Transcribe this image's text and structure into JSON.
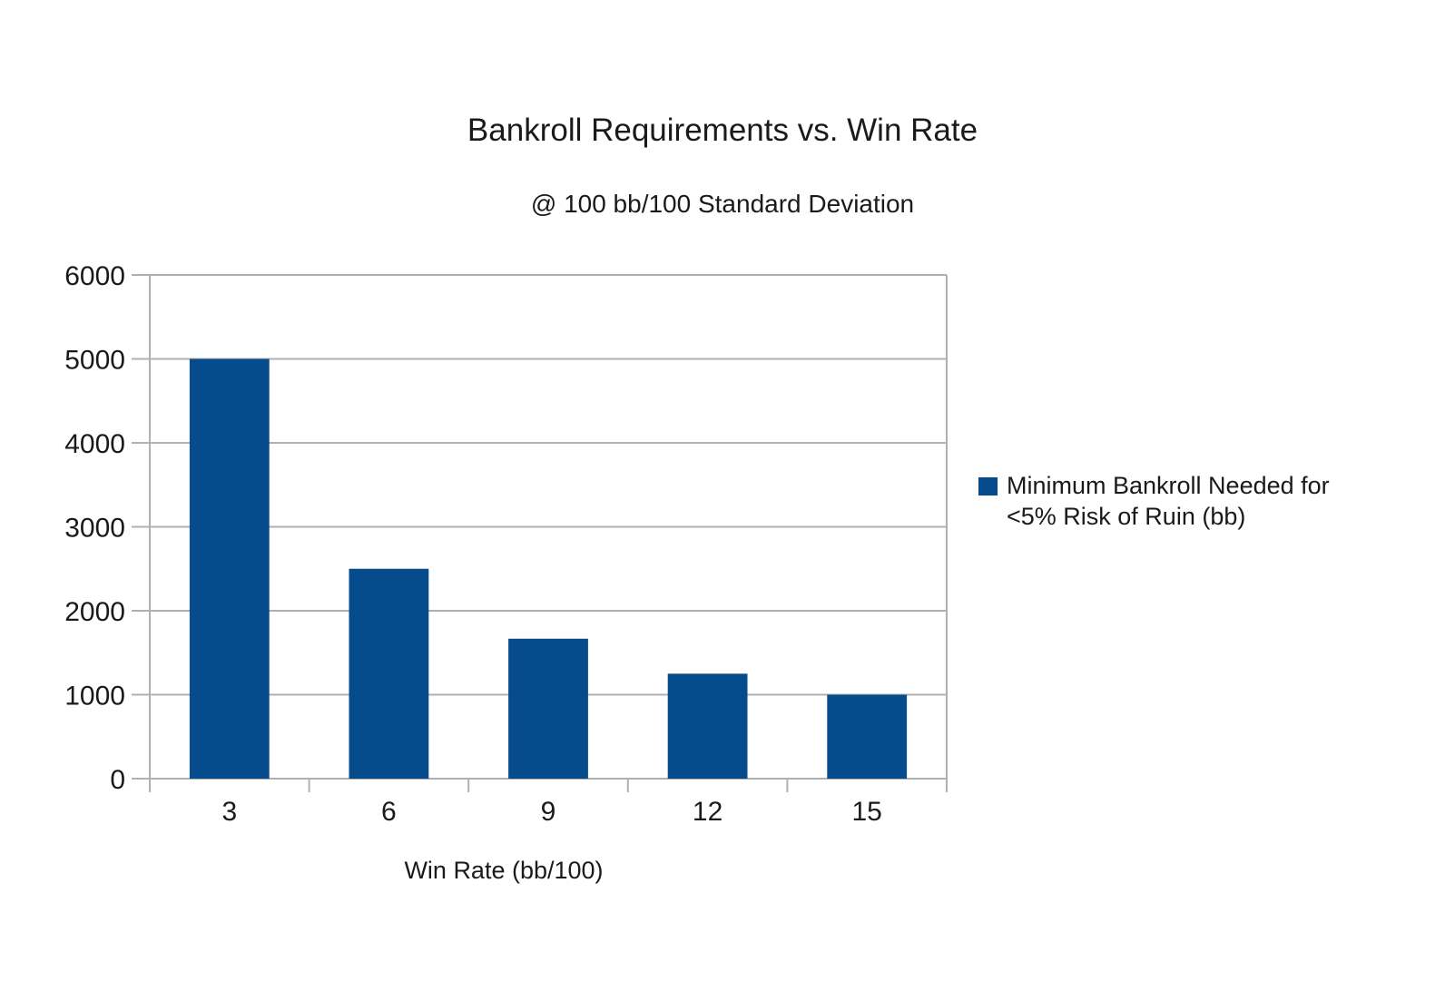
{
  "title": "Bankroll Requirements vs. Win Rate",
  "subtitle": "@ 100 bb/100 Standard Deviation",
  "legend": {
    "lines": [
      "Minimum Bankroll Needed for",
      "<5% Risk of Ruin (bb)"
    ]
  },
  "colors": {
    "bar": "#064B8C",
    "grid": "#b0b0b0",
    "axis": "#b0b0b0",
    "text": "#1a1a1a",
    "background": "#ffffff"
  },
  "chart_data": {
    "type": "bar",
    "title": "Bankroll Requirements vs. Win Rate",
    "subtitle": "@ 100 bb/100 Standard Deviation",
    "categories": [
      "3",
      "6",
      "9",
      "12",
      "15"
    ],
    "series": [
      {
        "name": "Minimum Bankroll Needed for <5% Risk of Ruin (bb)",
        "values": [
          5000,
          2500,
          1667,
          1250,
          1000
        ]
      }
    ],
    "xlabel": "Win Rate (bb/100)",
    "ylabel": "",
    "ylim": [
      0,
      6000
    ],
    "yticks": [
      0,
      1000,
      2000,
      3000,
      4000,
      5000,
      6000
    ],
    "grid": true,
    "legend_position": "right"
  }
}
